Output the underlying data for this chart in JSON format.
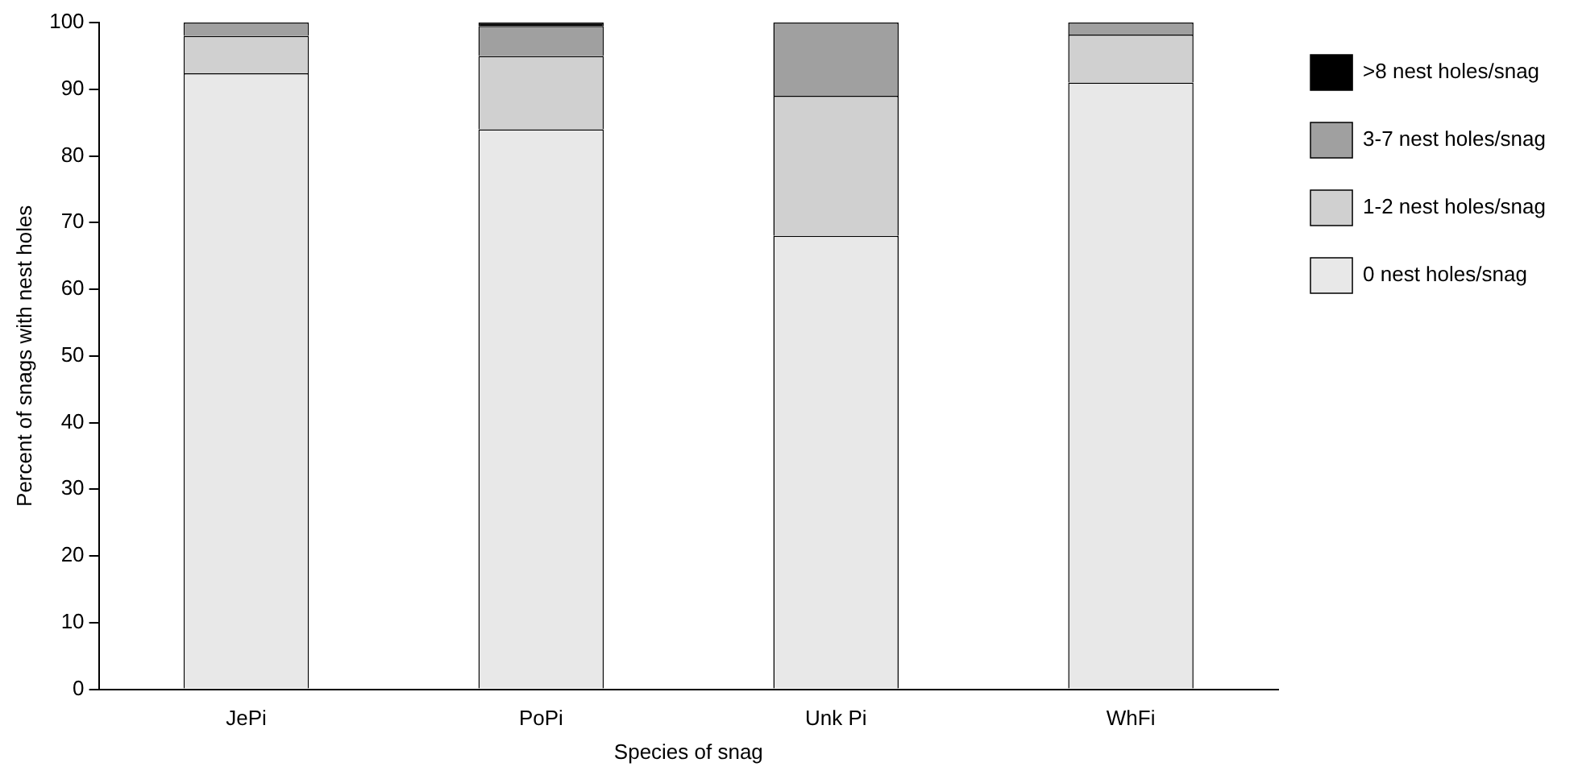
{
  "chart_data": {
    "type": "bar",
    "stacked": true,
    "xlabel": "Species of snag",
    "ylabel": "Percent of snags with nest holes",
    "categories": [
      "JePi",
      "PoPi",
      "Unk Pi",
      "WhFi"
    ],
    "series": [
      {
        "name": "0 nest holes/snag",
        "color": "#e8e8e8",
        "values": [
          92.4,
          84,
          68,
          91
        ]
      },
      {
        "name": "1-2 nest holes/snag",
        "color": "#d0d0d0",
        "values": [
          5.6,
          11,
          21,
          7.2
        ]
      },
      {
        "name": "3-7 nest holes/snag",
        "color": "#a0a0a0",
        "values": [
          2,
          4.5,
          11,
          1.8
        ]
      },
      {
        "name": ">8 nest holes/snag",
        "color": "#000000",
        "values": [
          0,
          0.5,
          0,
          0
        ]
      }
    ],
    "ylim": [
      0,
      100
    ],
    "yticks": [
      0,
      10,
      20,
      30,
      40,
      50,
      60,
      70,
      80,
      90,
      100
    ],
    "grid": false,
    "legend": "top right"
  }
}
